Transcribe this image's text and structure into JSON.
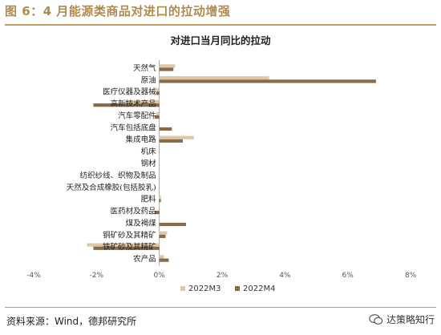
{
  "figure": {
    "title": "图 6：4 月能源类商品对进口的拉动增强",
    "source": "资料来源：Wind，德邦研究所",
    "brand": "达策略知行"
  },
  "chart_data": {
    "type": "bar",
    "orientation": "horizontal",
    "title": "对进口当月同比的拉动",
    "categories": [
      "天然气",
      "原油",
      "医疗仪器及器械",
      "高新技术产品",
      "汽车零配件",
      "汽车包括底盘",
      "集成电路",
      "机床",
      "钢材",
      "纺织纱线、织物及制品",
      "天然及合成橡胶(包括胶乳)",
      "肥料",
      "医药材及药品",
      "煤及褐煤",
      "铜矿砂及其精矿",
      "铁矿砂及其精矿",
      "农产品"
    ],
    "series": [
      {
        "name": "2022M3",
        "color": "#dcc8a6",
        "values": [
          0.5,
          3.5,
          -0.1,
          -1.1,
          -0.1,
          0.0,
          1.1,
          0.0,
          0.0,
          0.0,
          0.0,
          0.05,
          0.0,
          0.0,
          0.25,
          -2.3,
          0.15
        ]
      },
      {
        "name": "2022M4",
        "color": "#8b6a48",
        "values": [
          0.45,
          6.9,
          -0.1,
          -2.1,
          -0.15,
          0.4,
          0.75,
          0.0,
          0.0,
          0.0,
          0.0,
          0.05,
          -0.15,
          0.85,
          0.2,
          -2.1,
          0.3
        ]
      }
    ],
    "xlim": [
      -4,
      8
    ],
    "xticks": [
      -4,
      -2,
      0,
      2,
      4,
      6,
      8
    ],
    "xtick_labels": [
      "-4%",
      "-2%",
      "0%",
      "2%",
      "4%",
      "6%",
      "8%"
    ],
    "legend_position": "bottom"
  }
}
